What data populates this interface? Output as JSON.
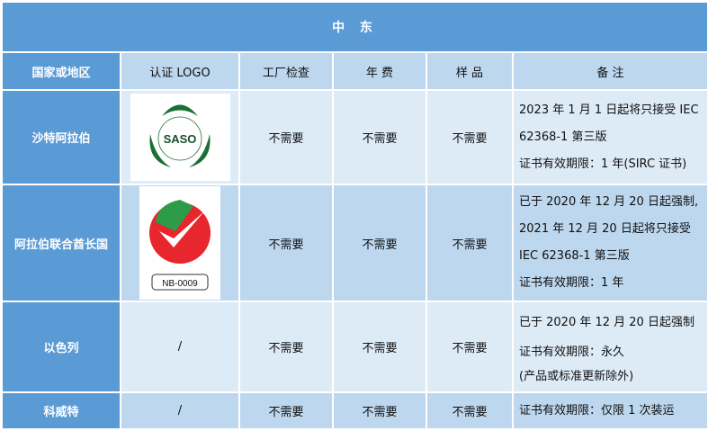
{
  "title": "中 东",
  "headers": [
    "国家或地区",
    "认证 LOGO",
    "工厂检查",
    "年 费",
    "样 品",
    "备 注"
  ],
  "rows": [
    {
      "country": "沙特阿拉伯",
      "logo": "SASO",
      "factory": "不需要",
      "fee": "不需要",
      "sample": "不需要",
      "notes": [
        "2023 年 1 月 1 日起将只接受 IEC",
        "62368-1 第三版",
        "证书有效期限：1 年(SIRC 证书)"
      ]
    },
    {
      "country": "阿拉伯联合酋长国",
      "logo": "NB-0009",
      "factory": "不需要",
      "fee": "不需要",
      "sample": "不需要",
      "notes": [
        "已于 2020 年 12 月 20 日起强制,",
        "2021 年 12 月 20 日起将只接受",
        "IEC 62368-1 第三版",
        "证书有效期限：1 年"
      ]
    },
    {
      "country": "以色列",
      "logo": "/",
      "factory": "不需要",
      "fee": "不需要",
      "sample": "不需要",
      "notes": [
        "已于 2020 年 12 月 20 日起强制",
        "证书有效期限：永久",
        "(产品或标准更新除外)"
      ]
    },
    {
      "country": "科威特",
      "logo": "/",
      "factory": "不需要",
      "fee": "不需要",
      "sample": "不需要",
      "notes": [
        "证书有效期限：仅限 1 次装运"
      ]
    }
  ]
}
